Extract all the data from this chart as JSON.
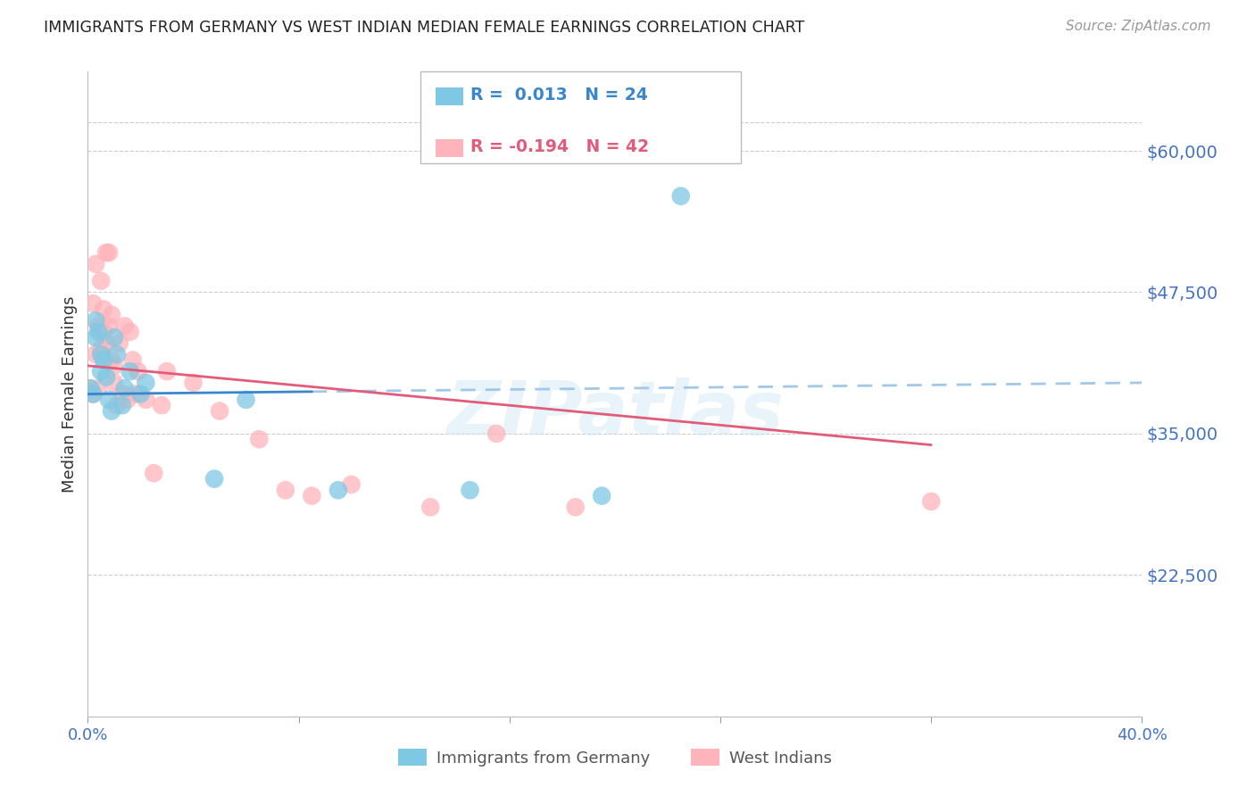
{
  "title": "IMMIGRANTS FROM GERMANY VS WEST INDIAN MEDIAN FEMALE EARNINGS CORRELATION CHART",
  "source": "Source: ZipAtlas.com",
  "ylabel": "Median Female Earnings",
  "xlim": [
    0.0,
    0.4
  ],
  "ylim": [
    10000,
    67000
  ],
  "yticks": [
    22500,
    35000,
    47500,
    60000
  ],
  "ytick_labels": [
    "$22,500",
    "$35,000",
    "$47,500",
    "$60,000"
  ],
  "xticks": [
    0.0,
    0.08,
    0.16,
    0.24,
    0.32,
    0.4
  ],
  "xtick_labels": [
    "0.0%",
    "",
    "",
    "",
    "",
    "40.0%"
  ],
  "legend_label1": "Immigrants from Germany",
  "legend_label2": "West Indians",
  "blue_color": "#7ec8e3",
  "pink_color": "#ffb3ba",
  "blue_line_color": "#3a86cc",
  "pink_line_color": "#e05c7a",
  "dashed_line_color": "#a0c8e8",
  "watermark": "ZIPatlas",
  "germany_x": [
    0.001,
    0.002,
    0.003,
    0.003,
    0.004,
    0.005,
    0.005,
    0.006,
    0.007,
    0.008,
    0.009,
    0.01,
    0.011,
    0.013,
    0.014,
    0.016,
    0.02,
    0.022,
    0.048,
    0.06,
    0.095,
    0.145,
    0.195,
    0.225
  ],
  "germany_y": [
    39000,
    38500,
    43500,
    45000,
    44000,
    42000,
    40500,
    41500,
    40000,
    38000,
    37000,
    43500,
    42000,
    37500,
    39000,
    40500,
    38500,
    39500,
    31000,
    38000,
    30000,
    30000,
    29500,
    56000
  ],
  "westindian_x": [
    0.001,
    0.002,
    0.002,
    0.003,
    0.003,
    0.004,
    0.004,
    0.005,
    0.005,
    0.006,
    0.006,
    0.007,
    0.007,
    0.008,
    0.008,
    0.009,
    0.009,
    0.01,
    0.01,
    0.011,
    0.012,
    0.013,
    0.014,
    0.015,
    0.016,
    0.017,
    0.018,
    0.019,
    0.022,
    0.025,
    0.028,
    0.03,
    0.04,
    0.05,
    0.065,
    0.075,
    0.085,
    0.1,
    0.13,
    0.155,
    0.185,
    0.32
  ],
  "westindian_y": [
    39000,
    38500,
    46500,
    42000,
    50000,
    44500,
    39000,
    48500,
    42500,
    46000,
    44000,
    51000,
    43000,
    51000,
    44500,
    45500,
    41500,
    39500,
    41000,
    37500,
    43000,
    38500,
    44500,
    38000,
    44000,
    41500,
    38500,
    40500,
    38000,
    31500,
    37500,
    40500,
    39500,
    37000,
    34500,
    30000,
    29500,
    30500,
    28500,
    35000,
    28500,
    29000
  ],
  "background_color": "#ffffff",
  "grid_color": "#cccccc",
  "title_color": "#222222",
  "tick_color": "#4472c4"
}
